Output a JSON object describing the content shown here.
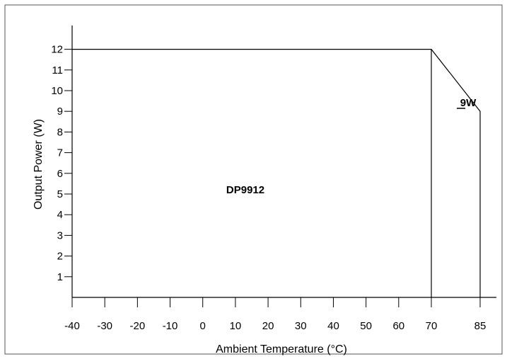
{
  "chart_data": {
    "type": "line",
    "title": "",
    "xlabel": "Ambient Temperature (°C)",
    "ylabel": "Output Power (W)",
    "x_ticks": [
      "-40",
      "-30",
      "-20",
      "-10",
      "0",
      "10",
      "20",
      "30",
      "40",
      "50",
      "60",
      "70",
      "85"
    ],
    "y_ticks": [
      "1",
      "2",
      "3",
      "4",
      "5",
      "6",
      "7",
      "8",
      "9",
      "10",
      "11",
      "12"
    ],
    "xlim": [
      -40,
      85
    ],
    "ylim": [
      0,
      12
    ],
    "grid": false,
    "series": [
      {
        "x": [
          -40,
          70,
          85,
          85
        ],
        "y": [
          12,
          12,
          9,
          0
        ]
      }
    ],
    "vertical_lines": [
      70
    ],
    "annotations": [
      {
        "text": "DP9912",
        "x": 20,
        "y": 5
      },
      {
        "text": "9W",
        "x": 80,
        "y": 9
      }
    ]
  }
}
